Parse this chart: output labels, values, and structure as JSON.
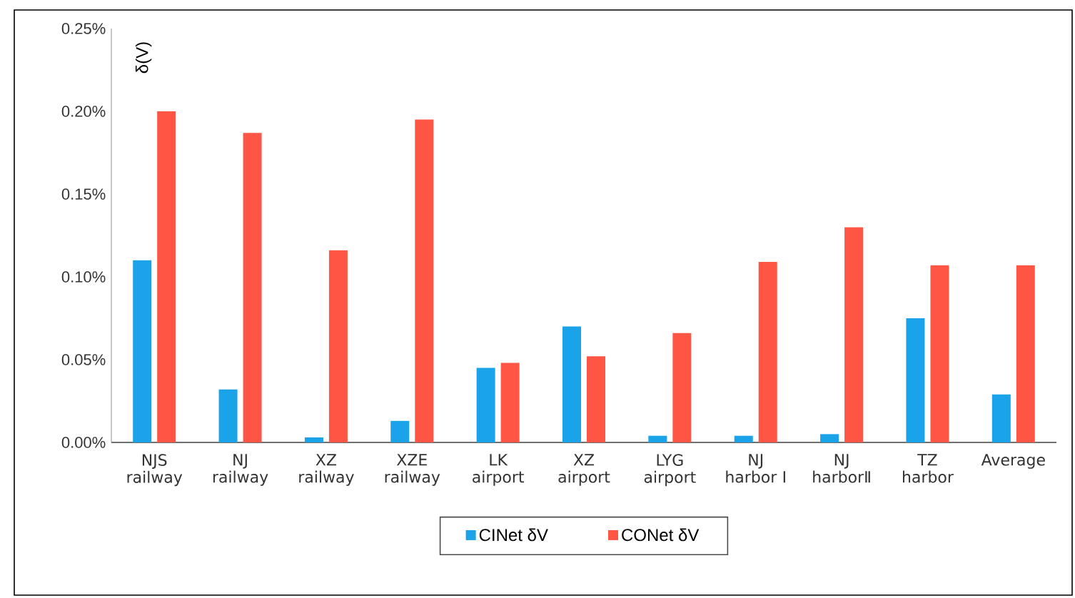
{
  "chart_data": {
    "type": "bar",
    "ylabel": "δ(V)",
    "categories": [
      "NJS railway",
      "NJ railway",
      "XZ railway",
      "XZE railway",
      "LK airport",
      "XZ airport",
      "LYG airport",
      "NJ harbor Ⅰ",
      "NJ harborⅡ",
      "TZ harbor",
      "Average"
    ],
    "series": [
      {
        "name": "CINet δV",
        "color": "#1aa3e8",
        "values": [
          0.11,
          0.032,
          0.003,
          0.013,
          0.045,
          0.07,
          0.004,
          0.004,
          0.005,
          0.075,
          0.029
        ]
      },
      {
        "name": "CONet δV",
        "color": "#ff5545",
        "values": [
          0.2,
          0.187,
          0.116,
          0.195,
          0.048,
          0.052,
          0.066,
          0.109,
          0.13,
          0.107,
          0.107
        ]
      }
    ],
    "ylim": [
      0,
      0.25
    ],
    "yticks": [
      {
        "value": 0,
        "label": "0.00%"
      },
      {
        "value": 0.05,
        "label": "0.05%"
      },
      {
        "value": 0.1,
        "label": "0.10%"
      },
      {
        "value": 0.15,
        "label": "0.15%"
      },
      {
        "value": 0.2,
        "label": "0.20%"
      },
      {
        "value": 0.25,
        "label": "0.25%"
      }
    ],
    "grid": false,
    "legend": "bottom"
  }
}
